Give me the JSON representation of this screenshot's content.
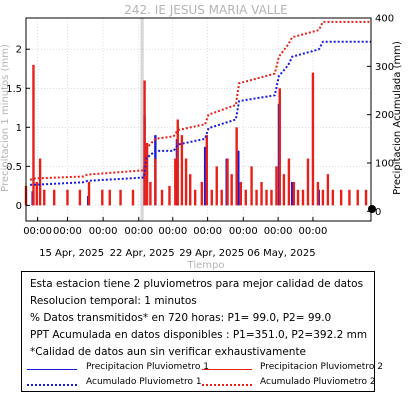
{
  "chart_data": {
    "type": "bar+line",
    "title": "242. IE JESUS MARIA VALLE",
    "xlabel": "Tiempo",
    "ylabel_left": "Precipitacion 1 minutos (mm)",
    "ylabel_right": "Precipitacion Acumulada (mm)",
    "xlim_days": [
      0,
      41.6
    ],
    "ylim_left": [
      -0.2,
      2.4
    ],
    "ylim_right": [
      -20,
      400
    ],
    "yticks_left": [
      "0",
      "0.5",
      "1",
      "1.5",
      "2"
    ],
    "yticks_left_values": [
      0,
      0.5,
      1,
      1.5,
      2
    ],
    "yticks_right": [
      "0",
      "100",
      "200",
      "300",
      "400"
    ],
    "yticks_right_values": [
      0,
      100,
      200,
      300,
      400
    ],
    "xticks_top": [
      "00:00",
      "00:00",
      "00:00",
      "00:00",
      "00:00",
      "00:00",
      "00:00",
      "00:00",
      "00:00"
    ],
    "xticks_top_days": [
      1.4,
      5.0,
      9.3,
      13.6,
      17.7,
      21.9,
      26.2,
      30.4,
      34.6
    ],
    "xticks_bottom": [
      "15 Apr, 2025",
      "22 Apr, 2025",
      "29 Apr, 2025",
      "06 May, 2025"
    ],
    "xticks_bottom_days": [
      5.5,
      14.0,
      22.4,
      30.8
    ],
    "gap_band_days": [
      13.8,
      14.2
    ],
    "series": [
      {
        "name": "Precipitacion Pluviometro 1",
        "color": "#1a1adc",
        "style": "bar",
        "x": [
          0.8,
          7.5,
          14.3,
          15.6,
          18.2,
          21.6,
          24.2,
          25.6,
          30.5,
          32.1,
          35.3
        ],
        "y": [
          0.18,
          0.12,
          1.15,
          0.9,
          0.85,
          0.75,
          0.6,
          0.7,
          1.3,
          0.3,
          0.2
        ]
      },
      {
        "name": "Precipitacion Pluviometro 2",
        "color": "#e8201a",
        "style": "bar",
        "x": [
          0.0,
          0.9,
          1.3,
          1.7,
          2.2,
          3.4,
          5.0,
          6.5,
          7.6,
          9.2,
          10.1,
          11.4,
          12.9,
          14.3,
          14.6,
          15.0,
          15.6,
          16.4,
          17.3,
          18.0,
          18.3,
          18.8,
          19.3,
          19.8,
          20.4,
          21.2,
          21.8,
          22.4,
          23.0,
          23.6,
          24.3,
          24.8,
          25.4,
          25.9,
          26.5,
          27.2,
          27.8,
          28.4,
          29.0,
          29.6,
          30.2,
          30.6,
          31.1,
          31.7,
          32.3,
          32.8,
          33.4,
          34.0,
          34.6,
          35.2,
          35.8,
          36.4,
          37.0,
          38.0,
          39.0,
          40.0,
          41.0
        ],
        "y": [
          0.25,
          1.8,
          0.3,
          0.6,
          0.2,
          0.2,
          0.2,
          0.2,
          0.3,
          0.2,
          0.2,
          0.2,
          0.2,
          1.6,
          0.8,
          0.3,
          0.6,
          0.2,
          0.25,
          0.6,
          1.1,
          0.9,
          0.6,
          0.4,
          0.2,
          0.3,
          0.9,
          0.2,
          0.5,
          0.2,
          0.6,
          0.4,
          1.0,
          0.3,
          0.2,
          0.5,
          0.2,
          0.3,
          0.2,
          0.2,
          0.5,
          1.5,
          0.4,
          0.6,
          0.3,
          0.2,
          0.2,
          0.6,
          1.7,
          0.3,
          0.2,
          0.4,
          0.2,
          0.2,
          0.2,
          0.2,
          0.2
        ]
      },
      {
        "name": "Acumulado Pluviometro 1",
        "color": "#1a1adc",
        "style": "dotted",
        "x": [
          0.5,
          0.9,
          6.9,
          7.4,
          14.2,
          14.5,
          15.6,
          17.8,
          18.3,
          21.6,
          22.0,
          25.3,
          25.7,
          30.0,
          30.5,
          31.6,
          32.1,
          35.3,
          35.8,
          41.6
        ],
        "y": [
          55,
          55,
          60,
          63,
          70,
          110,
          125,
          125,
          138,
          150,
          172,
          190,
          228,
          240,
          280,
          302,
          320,
          335,
          351,
          351
        ]
      },
      {
        "name": "Acumulado Pluviometro 2",
        "color": "#e8201a",
        "style": "dotted",
        "x": [
          0.5,
          0.9,
          6.9,
          7.4,
          14.2,
          14.5,
          15.6,
          17.8,
          18.3,
          21.6,
          22.0,
          25.3,
          25.7,
          30.0,
          30.5,
          31.6,
          32.1,
          35.3,
          35.8,
          41.6
        ],
        "y": [
          65,
          68,
          72,
          76,
          85,
          130,
          150,
          155,
          168,
          180,
          200,
          220,
          265,
          285,
          320,
          345,
          360,
          375,
          392,
          392
        ]
      }
    ],
    "legend_position": "below"
  },
  "info": {
    "lines": [
      "Esta estacion tiene 2 pluviometros para mejor calidad de datos",
      "Resolucion temporal: 1 minutos",
      "% Datos transmitidos* en 720 horas: P1= 99.0, P2= 99.0",
      "PPT Acumulada en datos disponibles : P1=351.0, P2=392.2 mm",
      "*Calidad de datos aun sin verificar exhaustivamente"
    ],
    "legend": [
      {
        "label": "Precipitacion Pluviometro 1",
        "color": "#1a1adc",
        "style": "solid"
      },
      {
        "label": "Precipitacion Pluviometro 2",
        "color": "#e8201a",
        "style": "solid"
      },
      {
        "label": "Acumulado Pluviometro 1",
        "color": "#1a1adc",
        "style": "dotted"
      },
      {
        "label": "Acumulado Pluviometro 2",
        "color": "#e8201a",
        "style": "dotted"
      }
    ]
  }
}
